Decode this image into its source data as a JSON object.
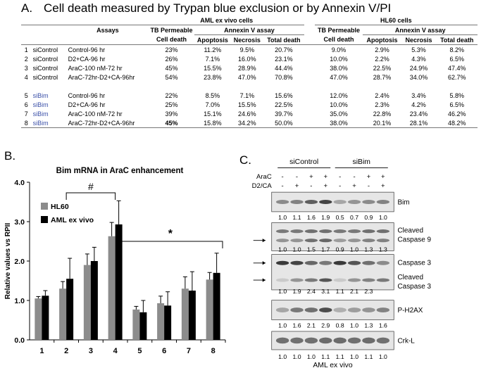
{
  "panel_a": {
    "letter": "A.",
    "title": "Cell death measured by Trypan blue exclusion or by Annexin V/PI",
    "group_aml": "AML ex vivo cells",
    "group_hl60": "HL60 cells",
    "col_assays": "Assays",
    "col_tb": "TB Permeable",
    "col_annexin": "Annexin V assay",
    "col_celldeath": "Cell death",
    "col_apoptosis": "Apoptosis",
    "col_necrosis": "Necrosis",
    "col_total": "Total death",
    "rows": [
      {
        "num": "1",
        "sirna": "siControl",
        "cond": "Control-96 hr",
        "aml": [
          "23%",
          "11.2%",
          "9.5%",
          "20.7%"
        ],
        "hl60": [
          "9.0%",
          "2.9%",
          "5.3%",
          "8.2%"
        ]
      },
      {
        "num": "2",
        "sirna": "siControl",
        "cond": "D2+CA-96 hr",
        "aml": [
          "26%",
          "7.1%",
          "16.0%",
          "23.1%"
        ],
        "hl60": [
          "10.0%",
          "2.2%",
          "4.3%",
          "6.5%"
        ]
      },
      {
        "num": "3",
        "sirna": "siControl",
        "cond": "AraC-100 nM-72 hr",
        "aml": [
          "45%",
          "15.5%",
          "28.9%",
          "44.4%"
        ],
        "hl60": [
          "38.0%",
          "22.5%",
          "24.9%",
          "47.4%"
        ]
      },
      {
        "num": "4",
        "sirna": "siControl",
        "cond": "AraC-72hr-D2+CA-96hr",
        "aml": [
          "54%",
          "23.8%",
          "47.0%",
          "70.8%"
        ],
        "hl60": [
          "47.0%",
          "28.7%",
          "34.0%",
          "62.7%"
        ]
      },
      {
        "num": "5",
        "sirna": "siBim",
        "cond": "Control-96 hr",
        "aml": [
          "22%",
          "8.5%",
          "7.1%",
          "15.6%"
        ],
        "hl60": [
          "12.0%",
          "2.4%",
          "3.4%",
          "5.8%"
        ]
      },
      {
        "num": "6",
        "sirna": "siBim",
        "cond": "D2+CA-96 hr",
        "aml": [
          "25%",
          "7.0%",
          "15.5%",
          "22.5%"
        ],
        "hl60": [
          "10.0%",
          "2.3%",
          "4.2%",
          "6.5%"
        ]
      },
      {
        "num": "7",
        "sirna": "siBim",
        "cond": "AraC-100 nM-72 hr",
        "aml": [
          "39%",
          "15.1%",
          "24.6%",
          "39.7%"
        ],
        "hl60": [
          "35.0%",
          "22.8%",
          "23.4%",
          "46.2%"
        ]
      },
      {
        "num": "8",
        "sirna": "siBim",
        "cond": "AraC-72hr-D2+CA-96hr",
        "aml": [
          "45%",
          "15.8%",
          "34.2%",
          "50.0%"
        ],
        "hl60": [
          "38.0%",
          "20.1%",
          "28.1%",
          "48.2%"
        ]
      }
    ]
  },
  "panel_b": {
    "letter": "B.",
    "hash": "#",
    "star": "*"
  },
  "chart_data": {
    "type": "bar",
    "title": "Bim mRNA in AraC enhancement",
    "ylabel": "Relative values vs RPII",
    "xlabel": "",
    "ylim": [
      0,
      4.0
    ],
    "yticks": [
      "0.0",
      "1.0",
      "2.0",
      "3.0",
      "4.0"
    ],
    "categories": [
      "1",
      "2",
      "3",
      "4",
      "5",
      "6",
      "7",
      "8"
    ],
    "series": [
      {
        "name": "HL60",
        "color": "#8c8c8c",
        "values": [
          1.05,
          1.3,
          1.9,
          2.63,
          0.77,
          0.93,
          1.3,
          1.53
        ],
        "errors": [
          0.05,
          0.18,
          0.28,
          0.35,
          0.08,
          0.18,
          0.3,
          0.18
        ]
      },
      {
        "name": "AML ex vivo",
        "color": "#000000",
        "values": [
          1.12,
          1.55,
          2.0,
          2.93,
          0.7,
          0.87,
          1.25,
          1.7
        ],
        "errors": [
          0.13,
          0.52,
          0.35,
          0.6,
          0.3,
          0.35,
          0.48,
          0.5
        ]
      }
    ]
  },
  "panel_c": {
    "letter": "C.",
    "group_sicontrol": "siControl",
    "group_sibim": "siBim",
    "row_arac": "AraC",
    "row_d2ca": "D2/CA",
    "arac_signs": [
      "-",
      "-",
      "+",
      "+",
      "-",
      "-",
      "+",
      "+"
    ],
    "d2ca_signs": [
      "-",
      "+",
      "-",
      "+",
      "-",
      "+",
      "-",
      "+"
    ],
    "bands": [
      {
        "label": "Bim",
        "values": [
          "1.0",
          "1.1",
          "1.6",
          "1.9",
          "0.5",
          "0.7",
          "0.9",
          "1.0"
        ]
      },
      {
        "label": "Cleaved",
        "label2": "Caspase 9",
        "values": [
          "1.0",
          "1.0",
          "1.5",
          "1.7",
          "0.9",
          "1.0",
          "1.3",
          "1.3"
        ]
      },
      {
        "label": "Caspase 3",
        "label2": "Cleaved",
        "label3": "Caspase 3",
        "values": [
          "1.0",
          "1.9",
          "2.4",
          "3.1",
          "1.1",
          "2.1",
          "2.3",
          ""
        ]
      },
      {
        "label": "P-H2AX",
        "values": [
          "1.0",
          "1.6",
          "2.1",
          "2.9",
          "0.8",
          "1.0",
          "1.3",
          "1.6"
        ]
      },
      {
        "label": "Crk-L",
        "values": [
          "1.0",
          "1.0",
          "1.0",
          "1.1",
          "1.1",
          "1.0",
          "1.1",
          "1.0"
        ]
      }
    ],
    "caption": "AML ex vivo"
  }
}
